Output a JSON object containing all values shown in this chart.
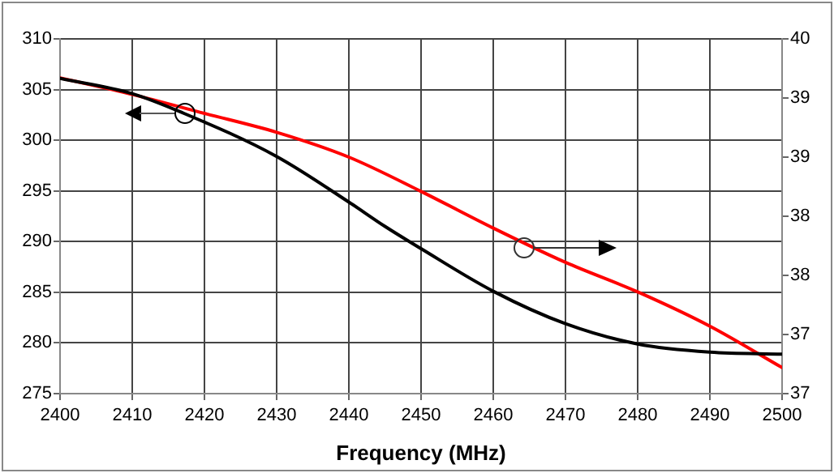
{
  "chart_data": {
    "type": "line",
    "xlabel": "Frequency (MHz)",
    "xlim": [
      2400,
      2500
    ],
    "xticks": [
      2400,
      2410,
      2420,
      2430,
      2440,
      2450,
      2460,
      2470,
      2480,
      2490,
      2500
    ],
    "ylim": [
      275,
      310
    ],
    "yticks": [
      275,
      280,
      285,
      290,
      295,
      300,
      305,
      310
    ],
    "y2lim": [
      37,
      40
    ],
    "y2ticks": [
      {
        "value": 37,
        "label": "37"
      },
      {
        "value": 37.5,
        "label": "37"
      },
      {
        "value": 38,
        "label": "38"
      },
      {
        "value": 38.5,
        "label": "38"
      },
      {
        "value": 39,
        "label": "39"
      },
      {
        "value": 39.5,
        "label": "39"
      },
      {
        "value": 40,
        "label": "40"
      }
    ],
    "grid": true,
    "legend": false,
    "marker": "none",
    "line_style": "solid",
    "series": [
      {
        "color": "#000000",
        "x": [
          2400,
          2410,
          2417,
          2430,
          2440,
          2445,
          2450,
          2460,
          2470,
          2480,
          2490,
          2500
        ],
        "values": [
          306.1,
          304.6,
          302.7,
          298.4,
          293.9,
          291.5,
          289.3,
          285.1,
          281.9,
          279.9,
          279.1,
          278.9
        ]
      },
      {
        "color": "#ff0000",
        "axis": "y2",
        "x": [
          2400,
          2410,
          2420,
          2430,
          2440,
          2450,
          2460,
          2470,
          2480,
          2490,
          2500
        ],
        "values": [
          39.67,
          39.53,
          39.37,
          39.21,
          39.0,
          38.71,
          38.4,
          38.11,
          37.86,
          37.57,
          37.22
        ]
      }
    ]
  }
}
